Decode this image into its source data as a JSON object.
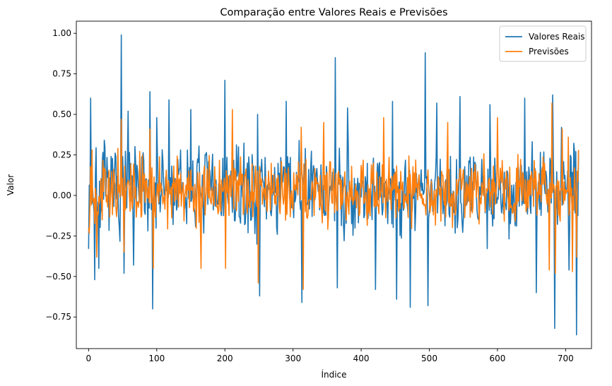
{
  "chart_data": {
    "type": "line",
    "title": "Comparação entre Valores Reais e Previsões",
    "xlabel": "Índice",
    "ylabel": "Valor",
    "xlim": [
      -18,
      738
    ],
    "ylim": [
      -0.945,
      1.075
    ],
    "xticks": [
      0,
      100,
      200,
      300,
      400,
      500,
      600,
      700
    ],
    "xtick_labels": [
      "0",
      "100",
      "200",
      "300",
      "400",
      "500",
      "600",
      "700"
    ],
    "yticks": [
      -0.75,
      -0.5,
      -0.25,
      0.0,
      0.25,
      0.5,
      0.75,
      1.0
    ],
    "ytick_labels": [
      "−0.75",
      "−0.50",
      "−0.25",
      "0.00",
      "0.25",
      "0.50",
      "0.75",
      "1.00"
    ],
    "grid": false,
    "legend_position": "top-right",
    "series": [
      {
        "name": "Valores Reais",
        "color": "#1f77b4",
        "n": 720,
        "keypoints": [
          [
            0,
            -0.33
          ],
          [
            3,
            0.6
          ],
          [
            9,
            -0.52
          ],
          [
            15,
            -0.45
          ],
          [
            48,
            0.99
          ],
          [
            52,
            -0.48
          ],
          [
            58,
            0.52
          ],
          [
            66,
            -0.43
          ],
          [
            90,
            0.64
          ],
          [
            94,
            -0.7
          ],
          [
            100,
            0.48
          ],
          [
            118,
            0.59
          ],
          [
            150,
            0.53
          ],
          [
            200,
            0.71
          ],
          [
            248,
            0.5
          ],
          [
            251,
            -0.62
          ],
          [
            290,
            0.58
          ],
          [
            313,
            -0.66
          ],
          [
            318,
            0.29
          ],
          [
            362,
            0.85
          ],
          [
            365,
            -0.57
          ],
          [
            380,
            0.54
          ],
          [
            421,
            -0.58
          ],
          [
            446,
            0.58
          ],
          [
            452,
            -0.64
          ],
          [
            472,
            -0.69
          ],
          [
            494,
            0.88
          ],
          [
            498,
            -0.68
          ],
          [
            511,
            0.57
          ],
          [
            545,
            0.61
          ],
          [
            589,
            0.56
          ],
          [
            640,
            0.6
          ],
          [
            657,
            -0.6
          ],
          [
            681,
            0.62
          ],
          [
            684,
            -0.82
          ],
          [
            694,
            0.42
          ],
          [
            705,
            -0.46
          ],
          [
            716,
            -0.86
          ],
          [
            719,
            0.28
          ]
        ],
        "amplitude": 0.28,
        "seed": 7
      },
      {
        "name": "Previsões",
        "color": "#ff7f0e",
        "n": 720,
        "keypoints": [
          [
            0,
            -0.2
          ],
          [
            5,
            0.28
          ],
          [
            12,
            -0.38
          ],
          [
            48,
            0.47
          ],
          [
            52,
            -0.35
          ],
          [
            90,
            0.41
          ],
          [
            95,
            -0.45
          ],
          [
            165,
            -0.45
          ],
          [
            201,
            -0.45
          ],
          [
            211,
            0.53
          ],
          [
            249,
            -0.54
          ],
          [
            312,
            0.42
          ],
          [
            315,
            -0.58
          ],
          [
            345,
            0.45
          ],
          [
            433,
            0.48
          ],
          [
            527,
            0.45
          ],
          [
            600,
            0.48
          ],
          [
            676,
            -0.46
          ],
          [
            680,
            0.57
          ],
          [
            685,
            -0.48
          ],
          [
            695,
            0.41
          ],
          [
            704,
            0.36
          ],
          [
            710,
            -0.47
          ],
          [
            716,
            -0.38
          ],
          [
            719,
            0.28
          ]
        ],
        "amplitude": 0.2,
        "seed": 13
      }
    ]
  }
}
